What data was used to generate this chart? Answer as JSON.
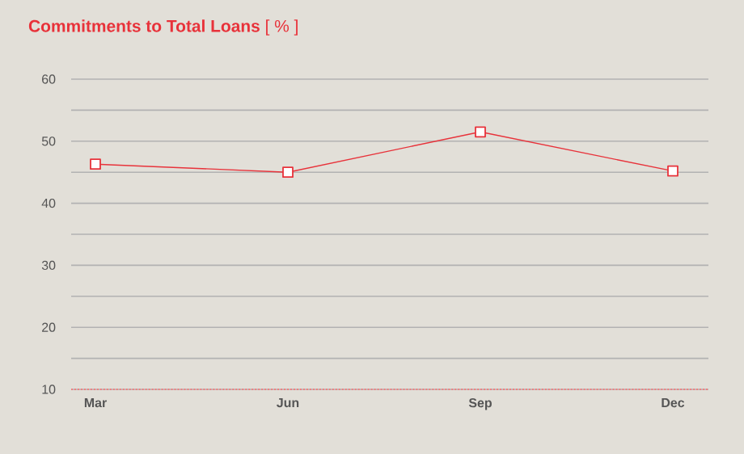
{
  "chart_data": {
    "type": "line",
    "title": "**Commitments to Total Loans**  [ % ]",
    "categories": [
      "Mar",
      "Jun",
      "Sep",
      "Dec"
    ],
    "series": [
      {
        "color": "#e8323a",
        "values": [
          46.3,
          45.0,
          51.5,
          45.2
        ]
      }
    ],
    "ylim": [
      10,
      60
    ],
    "yticks": [
      10,
      {
        "value": 15,
        "label": null
      },
      20,
      {
        "value": 25,
        "label": null
      },
      30,
      {
        "value": 35,
        "label": null
      },
      40,
      {
        "value": 45,
        "label": null
      },
      50,
      {
        "value": 55,
        "label": null
      },
      60
    ],
    "grid": "y",
    "marker": "square",
    "line_style": "solid",
    "ref_lines": [
      {
        "axis": "y",
        "value": 10,
        "color": "#f08080",
        "line_style": "dotted"
      }
    ]
  }
}
